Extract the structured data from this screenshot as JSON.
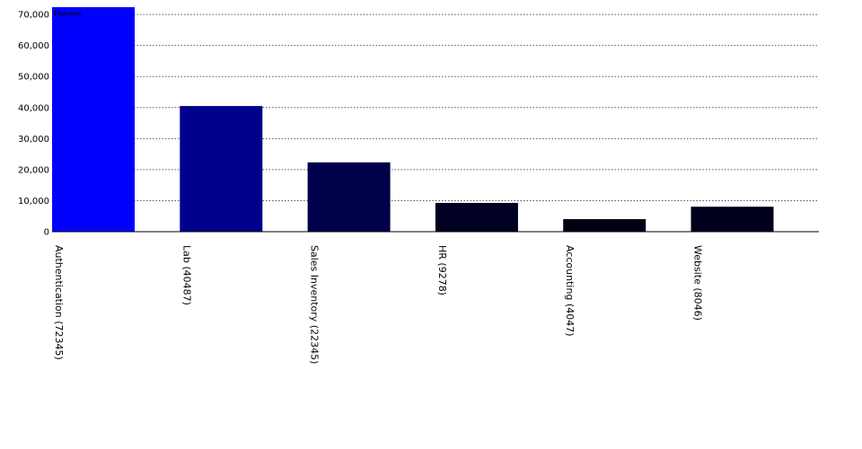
{
  "chart_data": {
    "type": "bar",
    "categories": [
      "Authentication (72345)",
      "Lab (40487)",
      "Sales Inventory (22345)",
      "HR (9278)",
      "Accounting (4047)",
      "Website (8046)"
    ],
    "series": [
      {
        "name": "Process",
        "values": [
          72345,
          40487,
          22345,
          9278,
          4047,
          8046
        ]
      }
    ],
    "bar_colors": [
      "#0000ff",
      "#00008c",
      "#00004a",
      "#000022",
      "#000015",
      "#00001c"
    ],
    "yticks": [
      "0",
      "10,000",
      "20,000",
      "30,000",
      "40,000",
      "50,000",
      "60,000",
      "70,000"
    ],
    "ylim": [
      0,
      72345
    ],
    "grid": true,
    "legend_position": "top-left"
  }
}
